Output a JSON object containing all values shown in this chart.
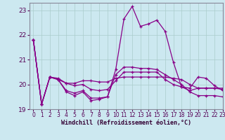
{
  "xlabel": "Windchill (Refroidissement éolien,°C)",
  "bg_color": "#cce8f0",
  "grid_color": "#aacccc",
  "line_color": "#880088",
  "xlim": [
    -0.5,
    23
  ],
  "ylim": [
    19,
    23.3
  ],
  "yticks": [
    19,
    20,
    21,
    22,
    23
  ],
  "xticks": [
    0,
    1,
    2,
    3,
    4,
    5,
    6,
    7,
    8,
    9,
    10,
    11,
    12,
    13,
    14,
    15,
    16,
    17,
    18,
    19,
    20,
    21,
    22,
    23
  ],
  "series": [
    [
      21.8,
      19.2,
      20.3,
      20.2,
      19.7,
      19.55,
      19.7,
      19.35,
      19.4,
      19.5,
      20.6,
      22.65,
      23.15,
      22.35,
      22.45,
      22.6,
      22.15,
      20.9,
      19.9,
      19.85,
      20.3,
      20.25,
      19.95,
      19.75
    ],
    [
      21.8,
      19.2,
      20.3,
      20.25,
      20.05,
      20.05,
      20.15,
      20.15,
      20.1,
      20.1,
      20.25,
      20.3,
      20.3,
      20.3,
      20.3,
      20.3,
      20.3,
      20.25,
      20.2,
      20.0,
      19.85,
      19.85,
      19.85,
      19.85
    ],
    [
      21.8,
      19.2,
      20.3,
      20.2,
      20.05,
      19.95,
      20.0,
      19.8,
      19.75,
      19.8,
      20.15,
      20.5,
      20.5,
      20.5,
      20.5,
      20.5,
      20.2,
      20.0,
      19.9,
      19.75,
      19.85,
      19.85,
      19.85,
      19.8
    ],
    [
      21.8,
      19.2,
      20.3,
      20.2,
      19.75,
      19.65,
      19.75,
      19.45,
      19.45,
      19.5,
      20.4,
      20.7,
      20.7,
      20.65,
      20.65,
      20.6,
      20.4,
      20.2,
      20.0,
      19.7,
      19.55,
      19.55,
      19.55,
      19.5
    ]
  ]
}
